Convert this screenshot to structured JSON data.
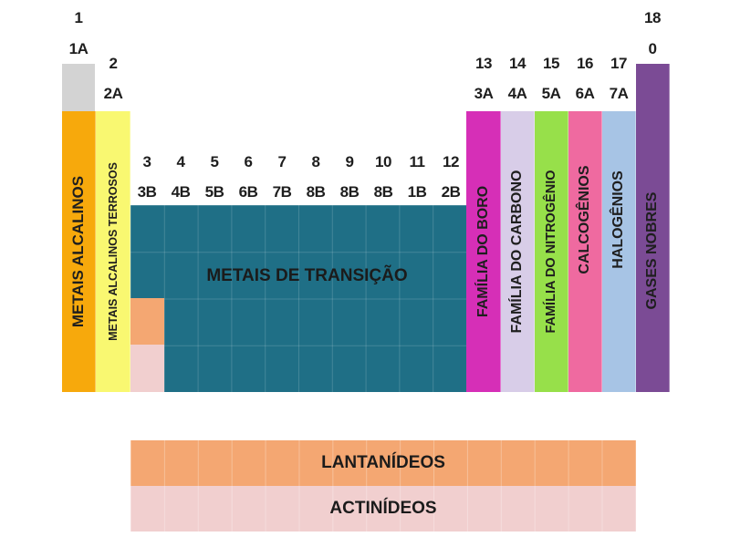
{
  "groups": {
    "g1": {
      "num": "1",
      "sub": "1A"
    },
    "g2": {
      "num": "2",
      "sub": "2A"
    },
    "g3": {
      "num": "3",
      "sub": "3B"
    },
    "g4": {
      "num": "4",
      "sub": "4B"
    },
    "g5": {
      "num": "5",
      "sub": "5B"
    },
    "g6": {
      "num": "6",
      "sub": "6B"
    },
    "g7": {
      "num": "7",
      "sub": "7B"
    },
    "g8": {
      "num": "8",
      "sub": "8B"
    },
    "g9": {
      "num": "9",
      "sub": "8B"
    },
    "g10": {
      "num": "10",
      "sub": "8B"
    },
    "g11": {
      "num": "11",
      "sub": "1B"
    },
    "g12": {
      "num": "12",
      "sub": "2B"
    },
    "g13": {
      "num": "13",
      "sub": "3A"
    },
    "g14": {
      "num": "14",
      "sub": "4A"
    },
    "g15": {
      "num": "15",
      "sub": "5A"
    },
    "g16": {
      "num": "16",
      "sub": "6A"
    },
    "g17": {
      "num": "17",
      "sub": "7A"
    },
    "g18": {
      "num": "18",
      "sub": "0"
    }
  },
  "families": {
    "alkali": "METAIS ALCALINOS",
    "alkaline_earth": "METAIS ALCALINOS TERROSOS",
    "transition": "METAIS DE TRANSIÇÃO",
    "boron": "FAMÍLIA DO BORO",
    "carbon": "FAMÍLIA DO CARBONO",
    "nitrogen": "FAMÍLIA DO NITROGÊNIO",
    "chalcogens": "CALCOGÊNIOS",
    "halogens": "HALOGÊNIOS",
    "noble_gases": "GASES NOBRES",
    "lanthanides": "LANTANÍDEOS",
    "actinides": "ACTINÍDEOS"
  },
  "colors": {
    "hydrogen": "#d3d3d3",
    "alkali": "#f7a90c",
    "alkaline_earth": "#f9f871",
    "transition": "#1f6f86",
    "lanthanide_marker": "#f4a772",
    "actinide_marker": "#f1cfcf",
    "boron": "#d62fb7",
    "carbon": "#d8cde8",
    "nitrogen": "#97e04a",
    "chalcogens": "#ef6aa0",
    "halogens": "#a7c4e5",
    "noble_gases": "#7b4b95",
    "lanthanides": "#f4a772",
    "actinides": "#f1cfcf"
  }
}
